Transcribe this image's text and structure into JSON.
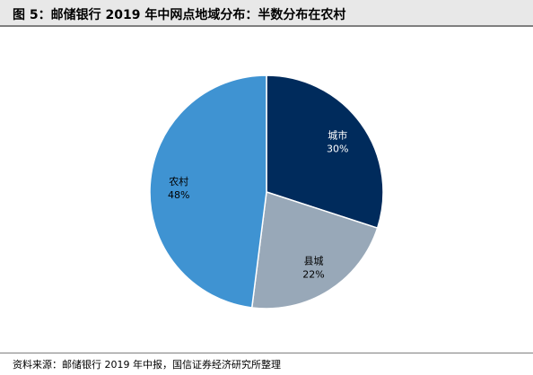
{
  "figure": {
    "title": "图 5：邮储银行 2019 年中网点地域分布：半数分布在农村",
    "source": "资料来源：邮储银行 2019 年中报，国信证券经济研究所整理"
  },
  "chart_data": {
    "type": "pie",
    "start_angle_deg": 0,
    "direction": "clockwise",
    "legend": "none",
    "slices": [
      {
        "name": "城市",
        "value": 30,
        "label": "30%",
        "color": "#002b5c",
        "label_color": "#ffffff"
      },
      {
        "name": "县城",
        "value": 22,
        "label": "22%",
        "color": "#98a8b8",
        "label_color": "#000000"
      },
      {
        "name": "农村",
        "value": 48,
        "label": "48%",
        "color": "#3f93d2",
        "label_color": "#000000"
      }
    ]
  }
}
